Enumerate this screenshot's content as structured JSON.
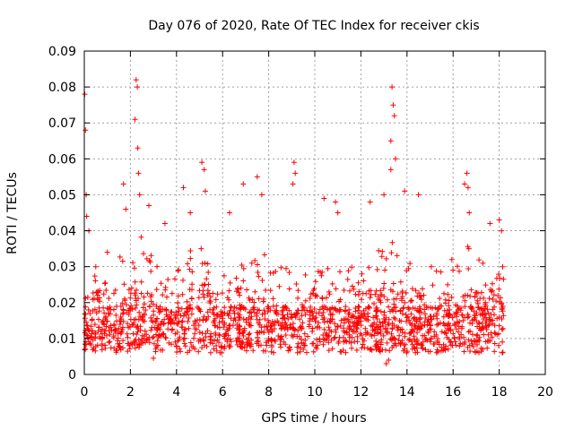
{
  "chart_data": {
    "type": "scatter",
    "title": "Day 076 of 2020, Rate Of TEC Index for receiver ckis",
    "xlabel": "GPS time / hours",
    "ylabel": "ROTI / TECUs",
    "xlim": [
      0,
      20
    ],
    "ylim": [
      0,
      0.09
    ],
    "x_ticks": [
      0,
      2,
      4,
      6,
      8,
      10,
      12,
      14,
      16,
      18,
      20
    ],
    "x_tick_labels": [
      "0",
      "2",
      "4",
      "6",
      "8",
      "10",
      "12",
      "14",
      "16",
      "18",
      "20"
    ],
    "y_ticks": [
      0,
      0.01,
      0.02,
      0.03,
      0.04,
      0.05,
      0.06,
      0.07,
      0.08,
      0.09
    ],
    "y_tick_labels": [
      "0",
      "0.01",
      "0.02",
      "0.03",
      "0.04",
      "0.05",
      "0.06",
      "0.07",
      "0.08",
      "0.09"
    ],
    "grid": true,
    "marker": "plus",
    "series_color": "#ff0000",
    "data_range": {
      "x_min": 0,
      "x_max": 18.2
    },
    "series": [
      {
        "points_sample": [
          [
            0.02,
            0.078
          ],
          [
            0.05,
            0.068
          ],
          [
            0.08,
            0.05
          ],
          [
            0.1,
            0.044
          ],
          [
            0.2,
            0.04
          ],
          [
            0.5,
            0.03
          ],
          [
            1.0,
            0.034
          ],
          [
            1.7,
            0.053
          ],
          [
            1.8,
            0.046
          ],
          [
            2.25,
            0.082
          ],
          [
            2.3,
            0.08
          ],
          [
            2.2,
            0.071
          ],
          [
            2.32,
            0.063
          ],
          [
            2.35,
            0.056
          ],
          [
            2.4,
            0.05
          ],
          [
            2.8,
            0.047
          ],
          [
            3.5,
            0.042
          ],
          [
            4.3,
            0.052
          ],
          [
            4.6,
            0.045
          ],
          [
            5.1,
            0.059
          ],
          [
            5.2,
            0.057
          ],
          [
            5.25,
            0.051
          ],
          [
            6.3,
            0.045
          ],
          [
            6.9,
            0.053
          ],
          [
            7.5,
            0.055
          ],
          [
            7.7,
            0.05
          ],
          [
            9.1,
            0.059
          ],
          [
            9.15,
            0.056
          ],
          [
            9.05,
            0.053
          ],
          [
            10.4,
            0.049
          ],
          [
            10.9,
            0.048
          ],
          [
            11.0,
            0.045
          ],
          [
            12.4,
            0.048
          ],
          [
            13.0,
            0.05
          ],
          [
            13.3,
            0.065
          ],
          [
            13.35,
            0.08
          ],
          [
            13.4,
            0.075
          ],
          [
            13.45,
            0.072
          ],
          [
            13.5,
            0.06
          ],
          [
            13.3,
            0.057
          ],
          [
            13.9,
            0.051
          ],
          [
            14.5,
            0.05
          ],
          [
            16.5,
            0.053
          ],
          [
            16.6,
            0.056
          ],
          [
            16.65,
            0.052
          ],
          [
            16.7,
            0.045
          ],
          [
            17.6,
            0.042
          ],
          [
            18.0,
            0.043
          ],
          [
            18.1,
            0.04
          ],
          [
            3.0,
            0.0045
          ],
          [
            13.1,
            0.003
          ],
          [
            13.2,
            0.004
          ],
          [
            18.15,
            0.03
          ]
        ]
      }
    ]
  }
}
